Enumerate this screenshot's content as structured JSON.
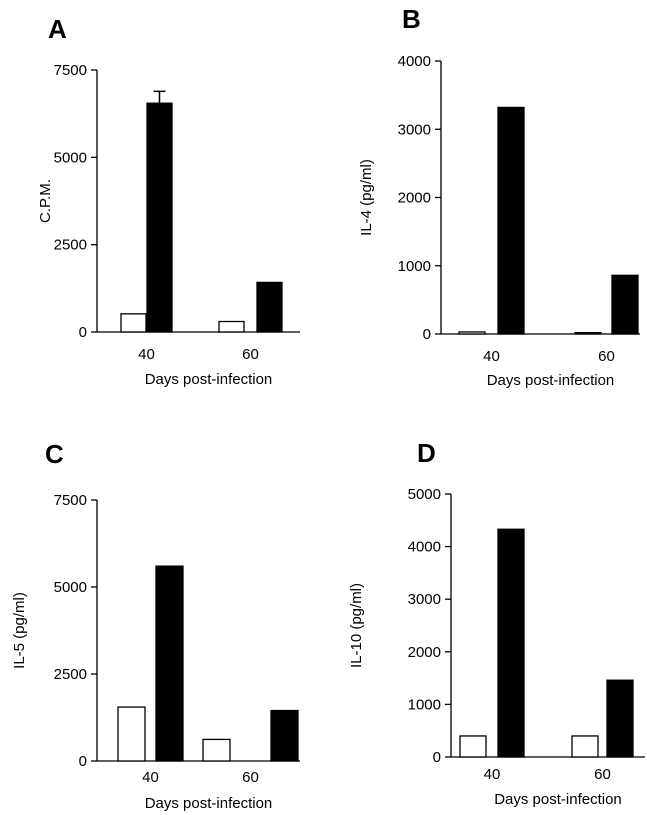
{
  "chart_data": [
    {
      "panel_label": "A",
      "type": "bar",
      "categories": [
        "40",
        "60"
      ],
      "series": [
        {
          "color": "#ffffff",
          "values": [
            520,
            300
          ]
        },
        {
          "color": "#000000",
          "values": [
            6550,
            1420
          ]
        }
      ],
      "error_bars": {
        "series_index": 1,
        "upper": [
          340,
          0
        ]
      },
      "ylabel": "C.P.M.",
      "xlabel": "Days post-infection",
      "ylim": [
        0,
        7500
      ],
      "yticks": [
        "0",
        "2500",
        "5000",
        "7500"
      ]
    },
    {
      "panel_label": "B",
      "type": "bar",
      "categories": [
        "40",
        "60"
      ],
      "series": [
        {
          "color": "#ffffff",
          "values": [
            30,
            20
          ]
        },
        {
          "color": "#000000",
          "values": [
            3320,
            860
          ]
        }
      ],
      "ylabel": "IL-4 (pg/ml)",
      "xlabel": "Days post-infection",
      "ylim": [
        0,
        4000
      ],
      "yticks": [
        "0",
        "1000",
        "2000",
        "3000",
        "4000"
      ]
    },
    {
      "panel_label": "C",
      "type": "bar",
      "categories": [
        "40",
        "60"
      ],
      "series": [
        {
          "color": "#ffffff",
          "values": [
            1550,
            620
          ]
        },
        {
          "color": "#000000",
          "values": [
            5600,
            1450
          ]
        }
      ],
      "ylabel": "IL-5 (pg/ml)",
      "xlabel": "Days post-infection",
      "ylim": [
        0,
        7500
      ],
      "yticks": [
        "0",
        "2500",
        "5000",
        "7500"
      ]
    },
    {
      "panel_label": "D",
      "type": "bar",
      "categories": [
        "40",
        "60"
      ],
      "series": [
        {
          "color": "#ffffff",
          "values": [
            400,
            400
          ]
        },
        {
          "color": "#000000",
          "values": [
            4330,
            1460
          ]
        }
      ],
      "ylabel": "IL-10 (pg/ml)",
      "xlabel": "Days post-infection",
      "ylim": [
        0,
        5000
      ],
      "yticks": [
        "0",
        "1000",
        "2000",
        "3000",
        "4000",
        "5000"
      ]
    }
  ]
}
